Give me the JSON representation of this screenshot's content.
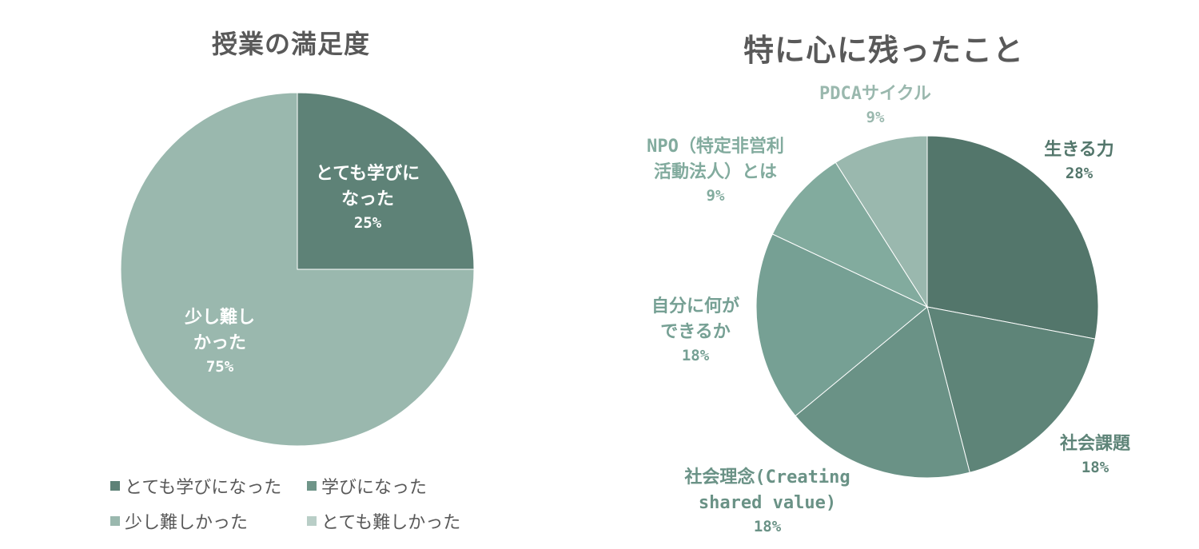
{
  "chart_data": [
    {
      "type": "pie",
      "title": "授業の満足度",
      "slices": [
        {
          "label": "とても学びになった",
          "display_label": "とても学びに\nなった",
          "value": 25,
          "percent_label": "25%",
          "color": "#5e8277"
        },
        {
          "label": "学びになった",
          "value": 0,
          "color": "#6f9589"
        },
        {
          "label": "少し難しかった",
          "display_label": "少し難し\nかった",
          "value": 75,
          "percent_label": "75%",
          "color": "#9ab8ae"
        },
        {
          "label": "とても難しかった",
          "value": 0,
          "color": "#b9cec7"
        }
      ],
      "legend": [
        "とても学びになった",
        "学びになった",
        "少し難しかった",
        "とても難しかった"
      ],
      "legend_position": "bottom"
    },
    {
      "type": "pie",
      "title": "特に心に残ったこと",
      "slices": [
        {
          "label": "生きる力",
          "value": 28,
          "percent_label": "28%",
          "color": "#53766b"
        },
        {
          "label": "社会課題",
          "value": 18,
          "percent_label": "18%",
          "color": "#5e8478"
        },
        {
          "label": "社会理念(Creating\nshared value)",
          "value": 18,
          "percent_label": "18%",
          "color": "#6a9286"
        },
        {
          "label": "自分に何が\nできるか",
          "value": 18,
          "percent_label": "18%",
          "color": "#76a094"
        },
        {
          "label": "NPO（特定非営利\n活動法人）とは",
          "value": 9,
          "percent_label": "9%",
          "color": "#82ab9e"
        },
        {
          "label": "PDCAサイクル",
          "value": 9,
          "percent_label": "9%",
          "color": "#9ab8ae"
        }
      ],
      "label_color": "#6a9286",
      "legend_position": "none"
    }
  ]
}
